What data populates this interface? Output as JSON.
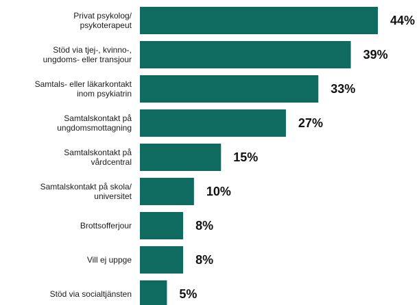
{
  "chart_data": {
    "type": "bar",
    "orientation": "horizontal",
    "title": "",
    "xlabel": "",
    "ylabel": "",
    "categories": [
      [
        "Privat psykolog/",
        "psykoterapeut"
      ],
      [
        "Stöd via tjej-, kvinno-,",
        "ungdoms- eller transjour"
      ],
      [
        "Samtals- eller läkarkontakt",
        "inom psykiatrin"
      ],
      [
        "Samtalskontakt på",
        "ungdomsmottagning"
      ],
      [
        "Samtalskontakt på",
        "vårdcentral"
      ],
      [
        "Samtalskontakt på skola/",
        "universitet"
      ],
      [
        "Brottsofferjour"
      ],
      [
        "Vill ej uppge"
      ],
      [
        "Stöd via socialtjänsten"
      ]
    ],
    "values": [
      44,
      39,
      33,
      27,
      15,
      10,
      8,
      8,
      5
    ],
    "value_labels": [
      "44%",
      "39%",
      "33%",
      "27%",
      "15%",
      "10%",
      "8%",
      "8%",
      "5%"
    ],
    "xlim": [
      0,
      44
    ],
    "grid": false,
    "legend": "none",
    "bar_color": "#0f6b5f"
  }
}
